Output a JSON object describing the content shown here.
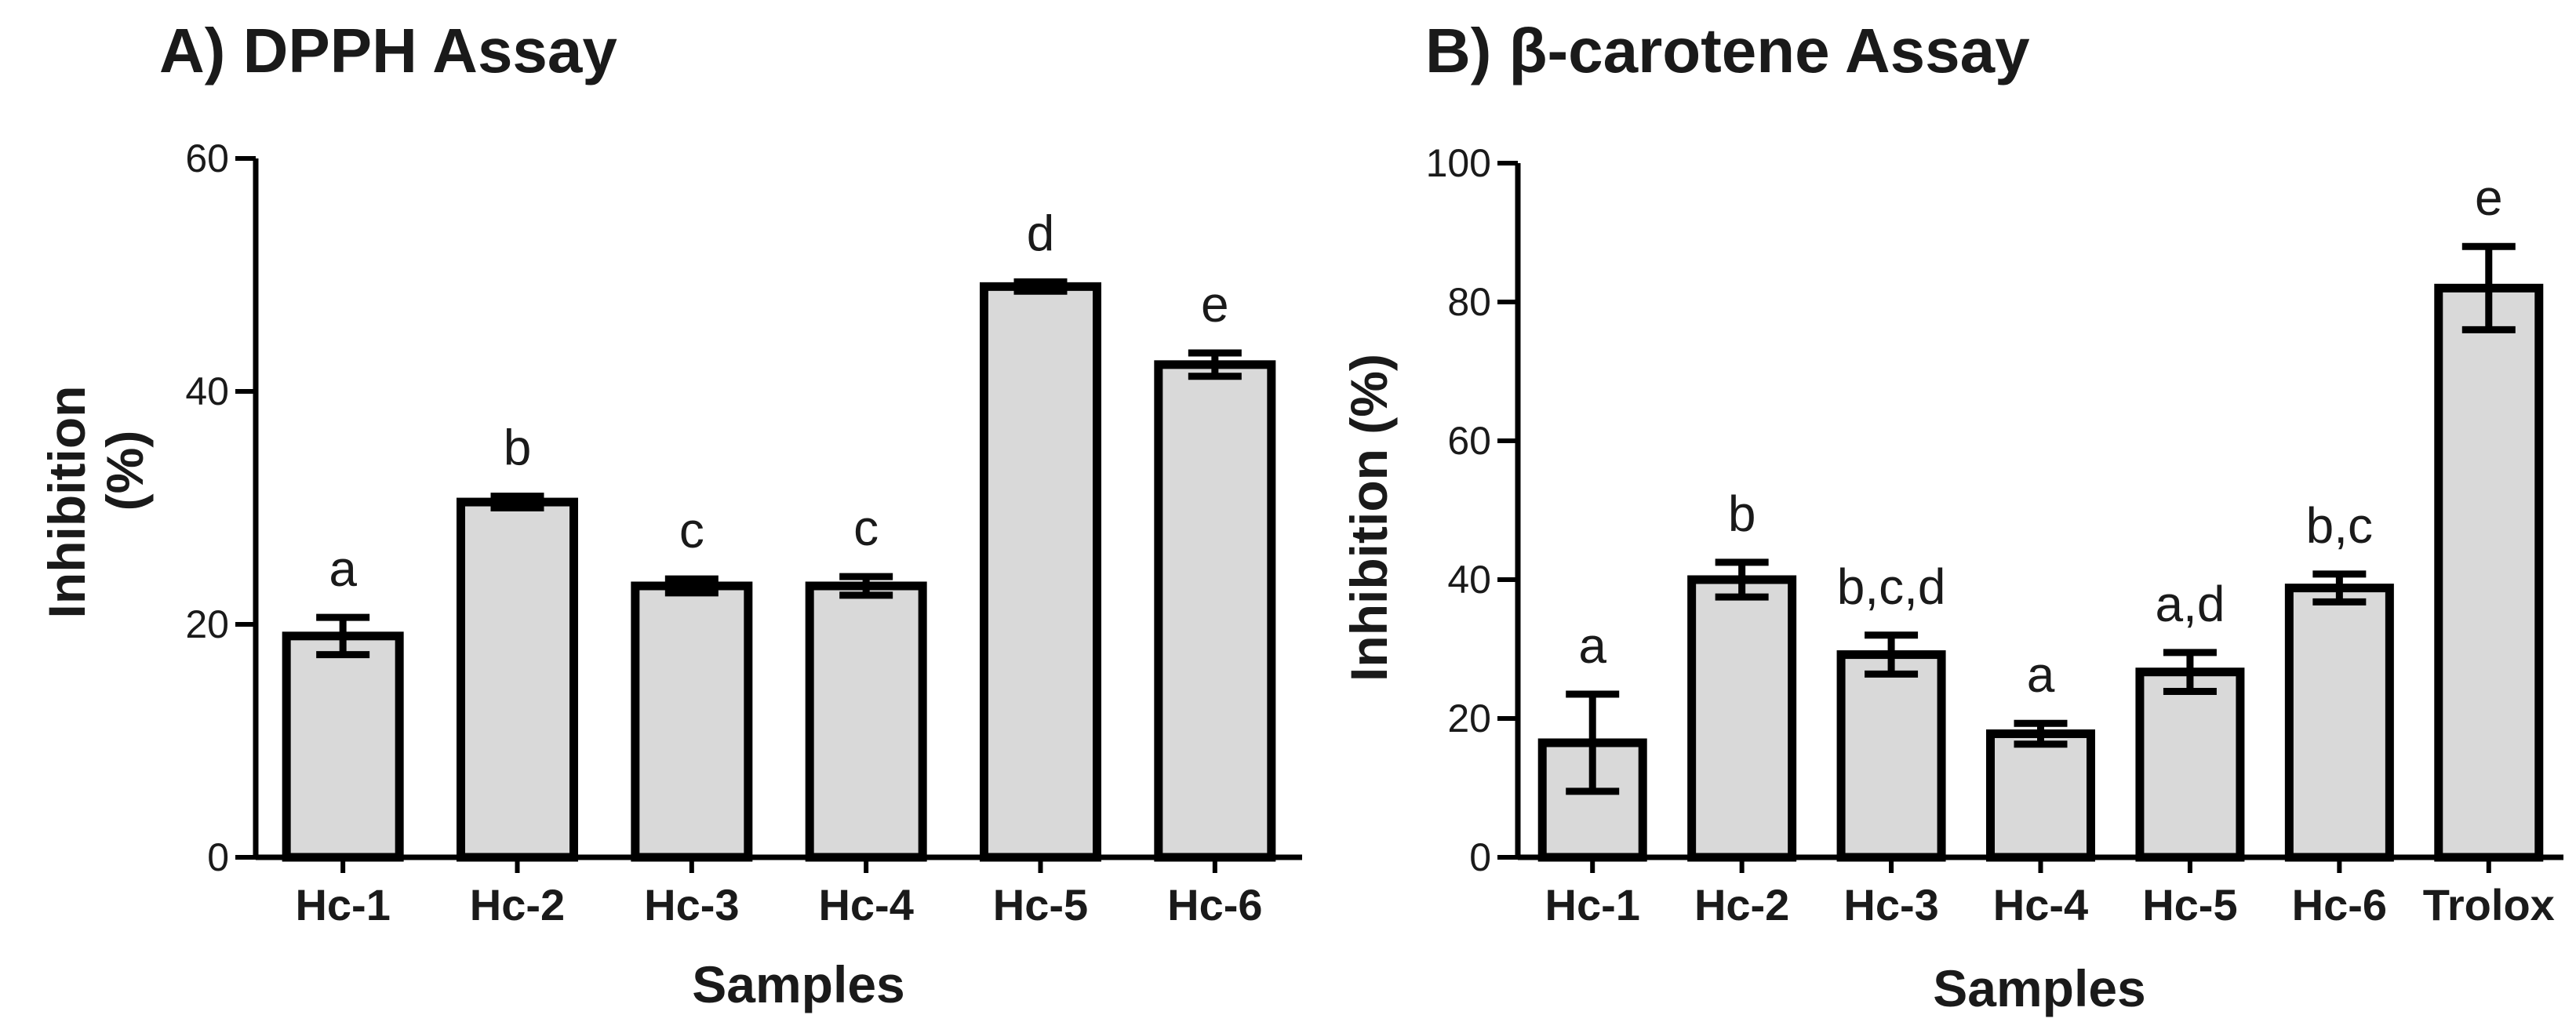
{
  "colors": {
    "bar_fill": "#d9d9d9",
    "stroke": "#000000",
    "text": "#1a1a1a"
  },
  "chart_data": [
    {
      "type": "bar",
      "title": "A) DPPH Assay",
      "xlabel": "Samples",
      "ylabel_line1": "Inhibition",
      "ylabel_line2": "(%)",
      "ylim": [
        0,
        60
      ],
      "yticks": [
        "0",
        "20",
        "40",
        "60"
      ],
      "categories": [
        "Hc-1",
        "Hc-2",
        "Hc-3",
        "Hc-4",
        "Hc-5",
        "Hc-6"
      ],
      "values": [
        19.0,
        30.5,
        23.3,
        23.3,
        49.0,
        42.3
      ],
      "errors": [
        1.6,
        0.5,
        0.6,
        0.8,
        0.4,
        1.0
      ],
      "letters": [
        "a",
        "b",
        "c",
        "c",
        "d",
        "e"
      ],
      "grid": false,
      "legend": "none"
    },
    {
      "type": "bar",
      "title": "B) β-carotene Assay",
      "xlabel": "Samples",
      "ylabel": "Inhibition (%)",
      "ylim": [
        0,
        100
      ],
      "yticks": [
        "0",
        "20",
        "40",
        "60",
        "80",
        "100"
      ],
      "categories": [
        "Hc-1",
        "Hc-2",
        "Hc-3",
        "Hc-4",
        "Hc-5",
        "Hc-6",
        "Trolox"
      ],
      "values": [
        16.5,
        40.0,
        29.2,
        17.8,
        26.7,
        38.8,
        82.0
      ],
      "errors": [
        7.0,
        2.5,
        2.8,
        1.5,
        2.8,
        2.0,
        6.0
      ],
      "letters": [
        "a",
        "b",
        "b,c,d",
        "a",
        "a,d",
        "b,c",
        "e"
      ],
      "grid": false,
      "legend": "none"
    }
  ]
}
